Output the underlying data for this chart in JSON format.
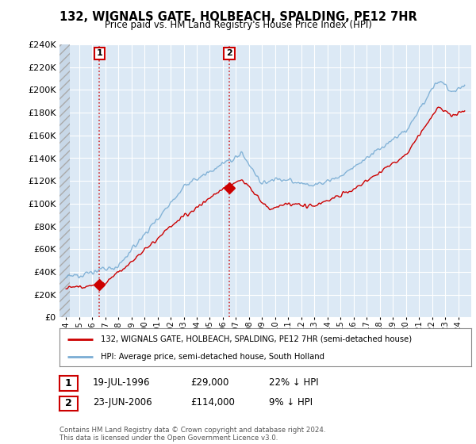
{
  "title": "132, WIGNALS GATE, HOLBEACH, SPALDING, PE12 7HR",
  "subtitle": "Price paid vs. HM Land Registry's House Price Index (HPI)",
  "ylim": [
    0,
    240000
  ],
  "yticks": [
    0,
    20000,
    40000,
    60000,
    80000,
    100000,
    120000,
    140000,
    160000,
    180000,
    200000,
    220000,
    240000
  ],
  "background_color": "#ffffff",
  "plot_bg_color": "#dce9f5",
  "grid_color": "#ffffff",
  "red_color": "#cc0000",
  "blue_color": "#7aadd4",
  "transaction1_year": 1996.55,
  "transaction1_price": 29000,
  "transaction2_year": 2006.48,
  "transaction2_price": 114000,
  "legend_label_red": "132, WIGNALS GATE, HOLBEACH, SPALDING, PE12 7HR (semi-detached house)",
  "legend_label_blue": "HPI: Average price, semi-detached house, South Holland",
  "footnote": "Contains HM Land Registry data © Crown copyright and database right 2024.\nThis data is licensed under the Open Government Licence v3.0.",
  "transaction1_label": "1",
  "transaction2_label": "2",
  "transaction1_info": "19-JUL-1996",
  "transaction1_price_str": "£29,000",
  "transaction1_hpi": "22% ↓ HPI",
  "transaction2_info": "23-JUN-2006",
  "transaction2_price_str": "£114,000",
  "transaction2_hpi": "9% ↓ HPI"
}
